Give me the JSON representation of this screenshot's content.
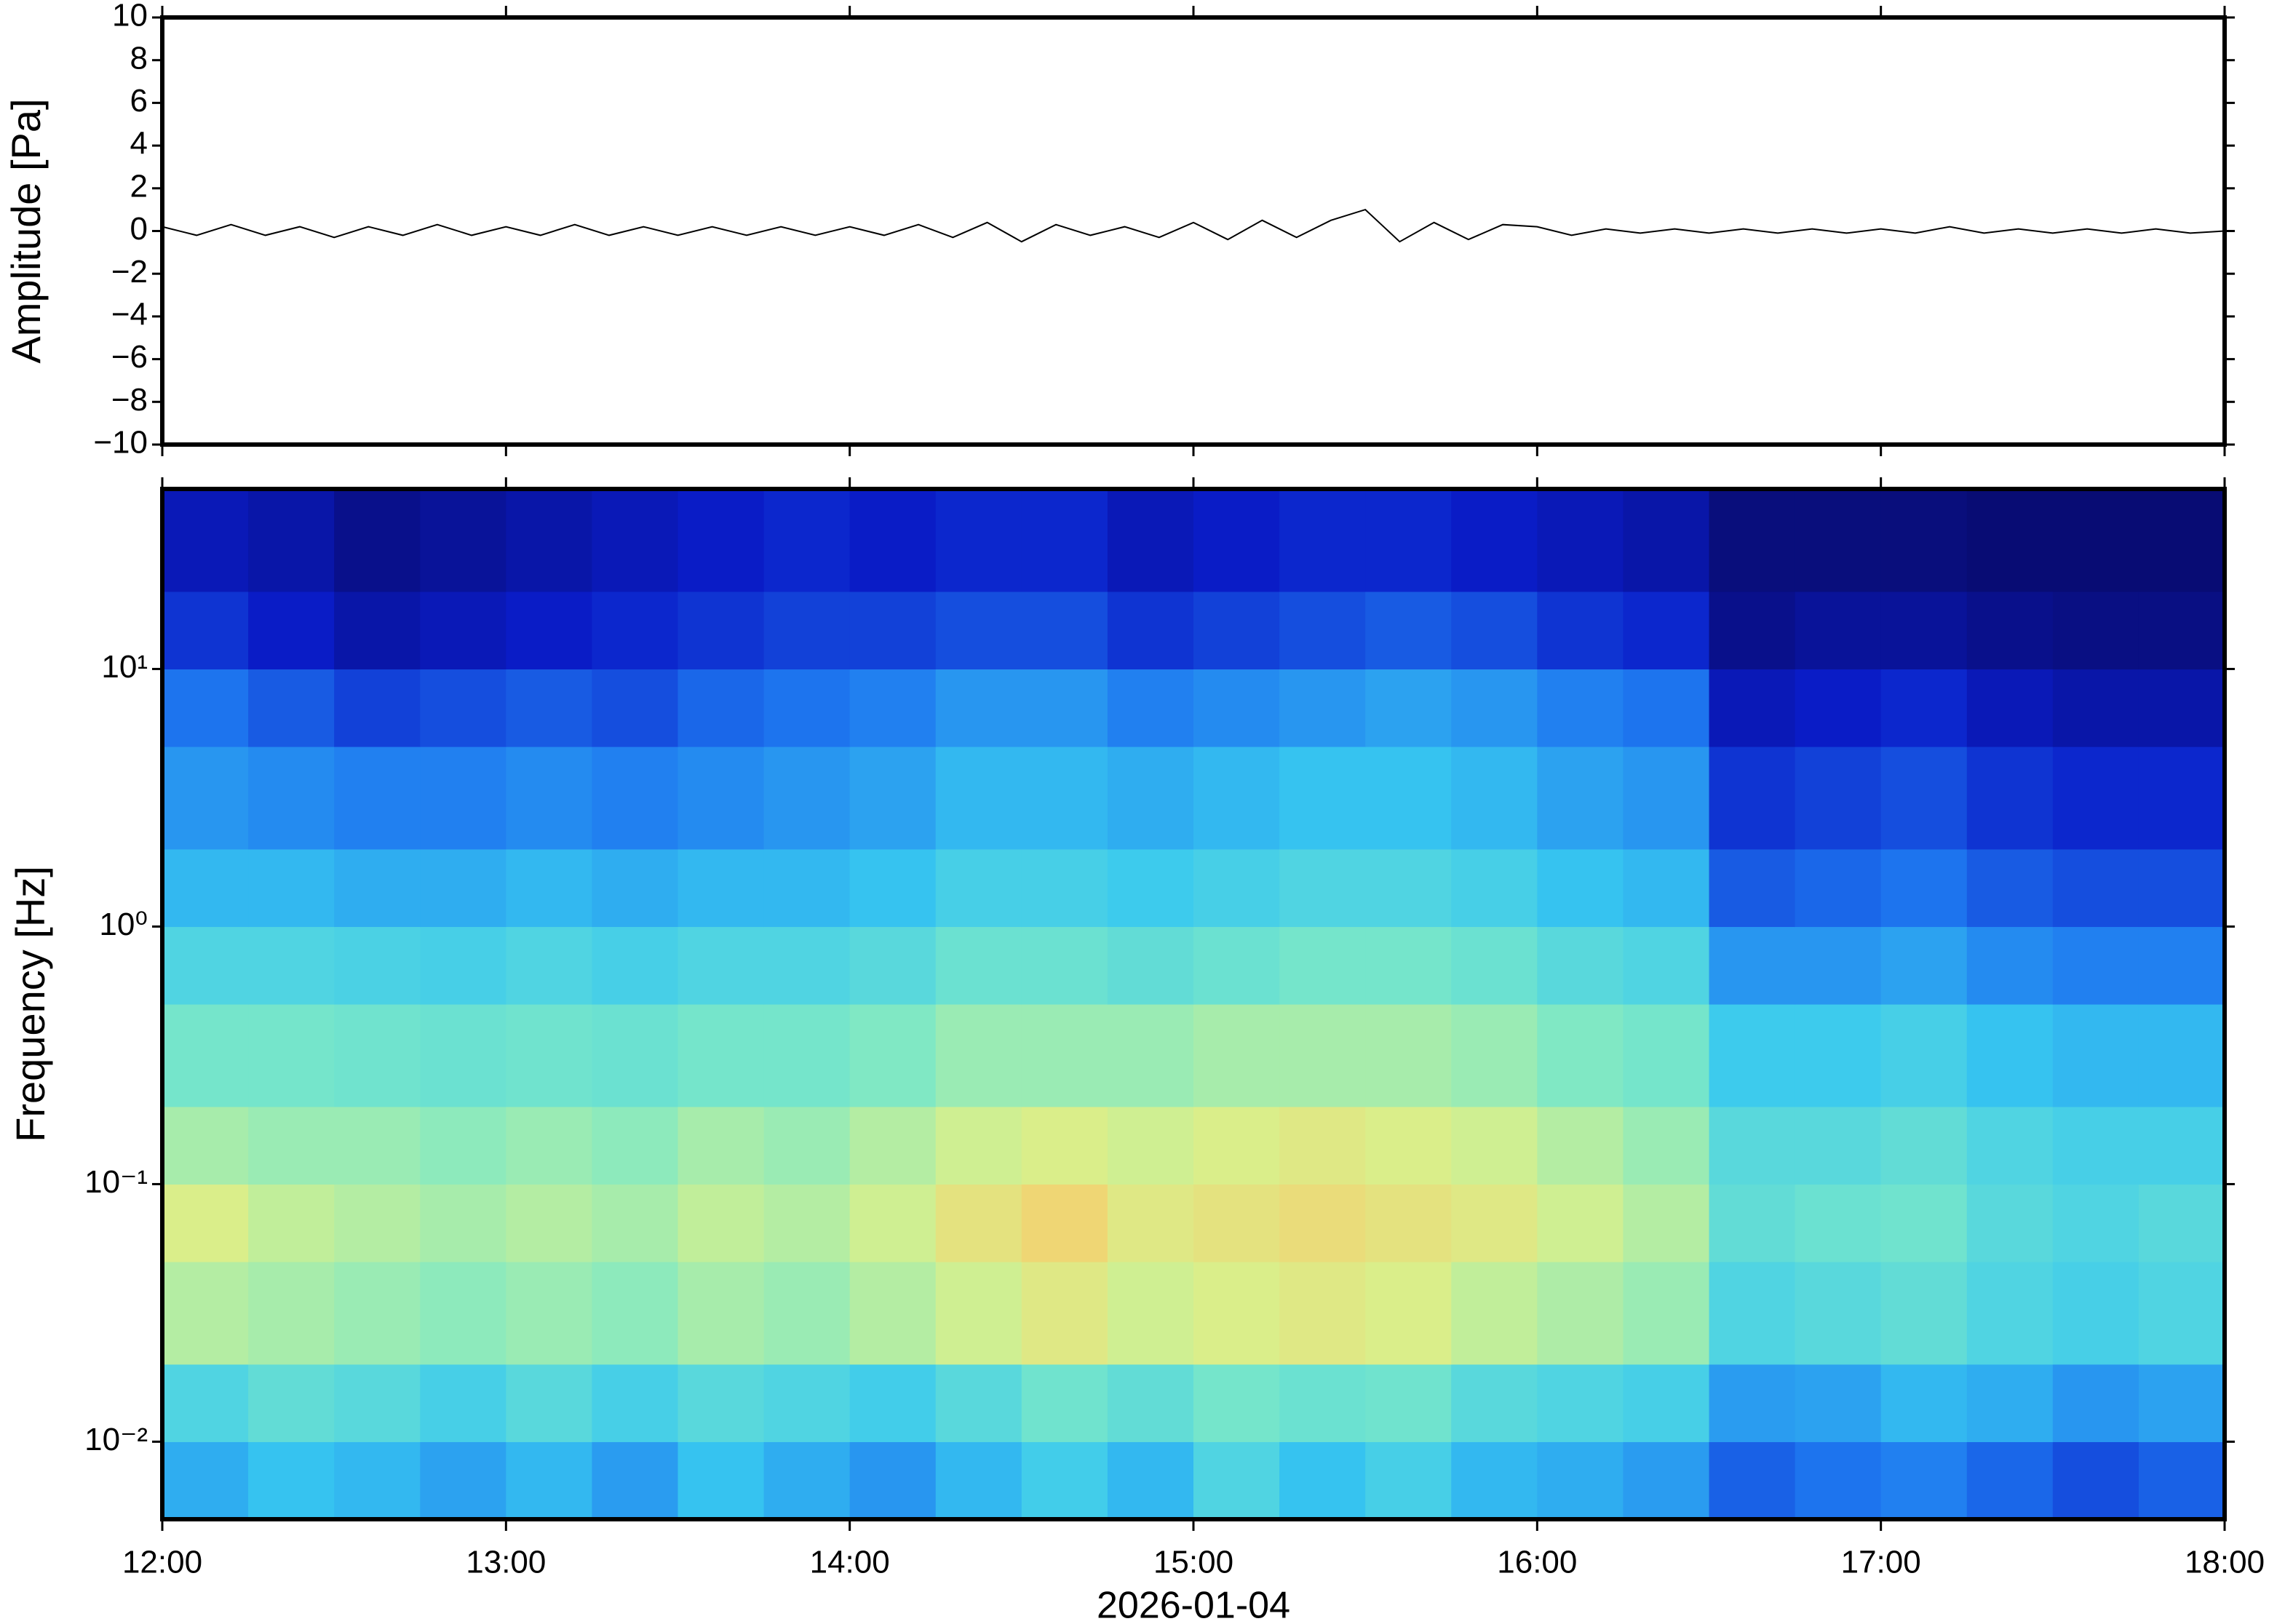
{
  "chart_data": [
    {
      "type": "line",
      "ylabel": "Amplitude [Pa]",
      "color": "#000000",
      "xlim": [
        12,
        18
      ],
      "ylim": [
        -10,
        10
      ],
      "yticks": [
        {
          "value": -10,
          "label": "−10"
        },
        {
          "value": -8,
          "label": "−8"
        },
        {
          "value": -6,
          "label": "−6"
        },
        {
          "value": -4,
          "label": "−4"
        },
        {
          "value": -2,
          "label": "−2"
        },
        0,
        2,
        4,
        6,
        8,
        10
      ],
      "x": [
        12.0,
        12.1,
        12.2,
        12.3,
        12.4,
        12.5,
        12.6,
        12.7,
        12.8,
        12.9,
        13.0,
        13.1,
        13.2,
        13.3,
        13.4,
        13.5,
        13.6,
        13.7,
        13.8,
        13.9,
        14.0,
        14.1,
        14.2,
        14.3,
        14.4,
        14.5,
        14.6,
        14.7,
        14.8,
        14.9,
        15.0,
        15.1,
        15.2,
        15.3,
        15.4,
        15.5,
        15.6,
        15.7,
        15.8,
        15.9,
        16.0,
        16.1,
        16.2,
        16.3,
        16.4,
        16.5,
        16.6,
        16.7,
        16.8,
        16.9,
        17.0,
        17.1,
        17.2,
        17.3,
        17.4,
        17.5,
        17.6,
        17.7,
        17.8,
        17.9,
        18.0
      ],
      "values": [
        0.2,
        -0.2,
        0.3,
        -0.2,
        0.2,
        -0.3,
        0.2,
        -0.2,
        0.3,
        -0.2,
        0.2,
        -0.2,
        0.3,
        -0.2,
        0.2,
        -0.2,
        0.2,
        -0.2,
        0.2,
        -0.2,
        0.2,
        -0.2,
        0.3,
        -0.3,
        0.4,
        -0.5,
        0.3,
        -0.2,
        0.2,
        -0.3,
        0.4,
        -0.4,
        0.5,
        -0.3,
        0.5,
        1.0,
        -0.5,
        0.4,
        -0.4,
        0.3,
        0.2,
        -0.2,
        0.1,
        -0.1,
        0.1,
        -0.1,
        0.1,
        -0.1,
        0.1,
        -0.1,
        0.1,
        -0.1,
        0.2,
        -0.1,
        0.1,
        -0.1,
        0.1,
        -0.1,
        0.1,
        -0.1,
        0
      ]
    },
    {
      "type": "heatmap",
      "ylabel": "Frequency [Hz]",
      "xlabel": "2026-01-04",
      "log_y": true,
      "xlim": [
        12,
        18
      ],
      "ylim": [
        0.005,
        50
      ],
      "xticks": [
        {
          "value": 12,
          "label": "12:00"
        },
        {
          "value": 13,
          "label": "13:00"
        },
        {
          "value": 14,
          "label": "14:00"
        },
        {
          "value": 15,
          "label": "15:00"
        },
        {
          "value": 16,
          "label": "16:00"
        },
        {
          "value": 17,
          "label": "17:00"
        },
        {
          "value": 18,
          "label": "18:00"
        }
      ],
      "yticks": [
        {
          "value": 0.01,
          "label": "10⁻²"
        },
        {
          "value": 0.1,
          "label": "10⁻¹"
        },
        {
          "value": 1,
          "label": "10⁰"
        },
        {
          "value": 10,
          "label": "10¹"
        }
      ],
      "x_edges": [
        12,
        12.25,
        12.5,
        12.75,
        13,
        13.25,
        13.5,
        13.75,
        14,
        14.25,
        14.5,
        14.75,
        15,
        15.25,
        15.5,
        15.75,
        16,
        16.25,
        16.5,
        16.75,
        17,
        17.25,
        17.5,
        17.75,
        18
      ],
      "y_edges": [
        0.005,
        0.01,
        0.02,
        0.05,
        0.1,
        0.2,
        0.5,
        1,
        2,
        5,
        10,
        20,
        50
      ],
      "zlim": [
        0,
        100
      ],
      "colormap": [
        "#08085e",
        "#0a1cc8",
        "#1e78f0",
        "#38c8f0",
        "#7ae8c8",
        "#d8f08c",
        "#ffc464",
        "#f06a3a"
      ],
      "z": [
        [
          38,
          42,
          40,
          36,
          40,
          35,
          42,
          38,
          34,
          40,
          45,
          40,
          48,
          42,
          46,
          40,
          38,
          35,
          25,
          28,
          30,
          26,
          22,
          25
        ],
        [
          48,
          52,
          50,
          46,
          50,
          46,
          50,
          48,
          45,
          50,
          55,
          52,
          56,
          54,
          55,
          50,
          48,
          46,
          35,
          36,
          40,
          38,
          34,
          36
        ],
        [
          66,
          64,
          62,
          60,
          62,
          60,
          64,
          62,
          66,
          70,
          74,
          70,
          72,
          74,
          72,
          68,
          65,
          62,
          48,
          50,
          52,
          48,
          46,
          48
        ],
        [
          72,
          68,
          66,
          64,
          66,
          64,
          68,
          66,
          70,
          76,
          80,
          74,
          76,
          78,
          76,
          74,
          70,
          66,
          52,
          54,
          55,
          50,
          48,
          50
        ],
        [
          64,
          62,
          62,
          60,
          62,
          60,
          64,
          62,
          66,
          70,
          72,
          70,
          72,
          74,
          72,
          70,
          66,
          62,
          50,
          50,
          52,
          48,
          46,
          46
        ],
        [
          56,
          56,
          55,
          54,
          55,
          54,
          56,
          56,
          58,
          62,
          62,
          62,
          64,
          64,
          64,
          62,
          58,
          56,
          44,
          44,
          46,
          42,
          40,
          40
        ],
        [
          48,
          48,
          47,
          46,
          48,
          46,
          48,
          48,
          50,
          54,
          54,
          52,
          54,
          56,
          56,
          54,
          50,
          48,
          34,
          34,
          36,
          32,
          30,
          30
        ],
        [
          40,
          40,
          38,
          38,
          40,
          38,
          40,
          40,
          42,
          46,
          46,
          44,
          46,
          48,
          48,
          46,
          42,
          40,
          24,
          26,
          28,
          24,
          22,
          22
        ],
        [
          34,
          32,
          30,
          30,
          32,
          30,
          32,
          34,
          36,
          40,
          40,
          38,
          40,
          42,
          42,
          40,
          36,
          34,
          18,
          20,
          22,
          18,
          16,
          16
        ],
        [
          28,
          24,
          20,
          22,
          24,
          22,
          26,
          28,
          30,
          34,
          34,
          30,
          32,
          34,
          36,
          34,
          30,
          28,
          12,
          14,
          16,
          12,
          10,
          10
        ],
        [
          18,
          14,
          10,
          12,
          14,
          16,
          18,
          20,
          20,
          22,
          22,
          18,
          20,
          22,
          24,
          22,
          18,
          16,
          6,
          8,
          8,
          6,
          5,
          5
        ],
        [
          12,
          10,
          6,
          8,
          10,
          12,
          14,
          16,
          14,
          16,
          16,
          12,
          14,
          16,
          16,
          14,
          12,
          10,
          4,
          4,
          4,
          3,
          3,
          3
        ]
      ]
    }
  ]
}
